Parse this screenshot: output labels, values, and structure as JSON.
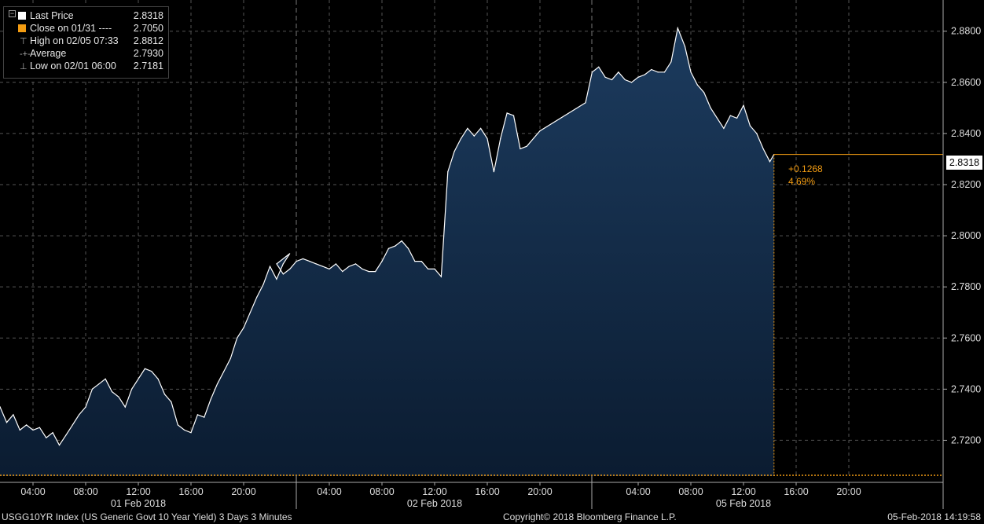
{
  "legend": {
    "rows": [
      {
        "label": "Last Price",
        "value": "2.8318",
        "icon": "square-white"
      },
      {
        "label": "Close on 01/31 ----",
        "value": "2.7050",
        "icon": "square-orange"
      },
      {
        "label": "High on 02/05 07:33",
        "value": "2.8812",
        "icon": "high-marker"
      },
      {
        "label": "Average",
        "value": "2.7930",
        "icon": "average-marker"
      },
      {
        "label": "Low on 02/01 06:00",
        "value": "2.7181",
        "icon": "low-marker"
      }
    ]
  },
  "last_price_tag": "2.8318",
  "change": {
    "abs": "+0.1268",
    "pct": "4.69%"
  },
  "footer": {
    "left": "USGG10YR Index (US Generic Govt 10 Year Yield) 3 Days 3 Minutes",
    "center": "Copyright© 2018 Bloomberg Finance L.P.",
    "right": "05-Feb-2018 14:19:58"
  },
  "colors": {
    "fill_top": "#1c3b5e",
    "fill_bottom": "#0b1c31",
    "line": "#ffffff",
    "close_line": "#f39c12",
    "grid": "#555555"
  },
  "chart_data": {
    "type": "area",
    "title": "",
    "ylim": [
      2.706,
      2.8922
    ],
    "y_ticks": [
      "2.7200",
      "2.7400",
      "2.7600",
      "2.7800",
      "2.8000",
      "2.8200",
      "2.8400",
      "2.8600",
      "2.8800"
    ],
    "close_value": 2.705,
    "days": [
      {
        "label": "01 Feb 2018",
        "ticks": [
          "04:00",
          "08:00",
          "12:00",
          "16:00",
          "20:00"
        ]
      },
      {
        "label": "02 Feb 2018",
        "ticks": [
          "04:00",
          "08:00",
          "12:00",
          "16:00",
          "20:00"
        ]
      },
      {
        "label": "05 Feb 2018",
        "ticks": [
          "04:00",
          "08:00",
          "12:00",
          "16:00",
          "20:00"
        ]
      }
    ],
    "series": [
      {
        "name": "Last Price",
        "x": [
          "02-01 00:00",
          "02-01 00:30",
          "02-01 01:00",
          "02-01 01:30",
          "02-01 02:00",
          "02-01 02:30",
          "02-01 03:00",
          "02-01 03:30",
          "02-01 04:00",
          "02-01 04:30",
          "02-01 05:00",
          "02-01 05:30",
          "02-01 06:00",
          "02-01 06:30",
          "02-01 07:00",
          "02-01 07:30",
          "02-01 08:00",
          "02-01 08:30",
          "02-01 09:00",
          "02-01 09:30",
          "02-01 10:00",
          "02-01 10:30",
          "02-01 11:00",
          "02-01 11:30",
          "02-01 12:00",
          "02-01 12:30",
          "02-01 13:00",
          "02-01 13:30",
          "02-01 14:00",
          "02-01 14:30",
          "02-01 15:00",
          "02-01 15:30",
          "02-01 16:00",
          "02-01 16:30",
          "02-01 17:00",
          "02-01 17:30",
          "02-01 18:00",
          "02-01 18:30",
          "02-01 19:00",
          "02-01 19:30",
          "02-01 20:00",
          "02-01 20:30",
          "02-01 21:00",
          "02-01 21:30",
          "02-01 22:00",
          "02-01 22:30",
          "02-01 23:00",
          "02-01 23:30",
          "02-02 00:00",
          "02-02 00:30",
          "02-02 01:00",
          "02-02 01:30",
          "02-02 02:00",
          "02-02 02:30",
          "02-02 03:00",
          "02-02 03:30",
          "02-02 04:00",
          "02-02 04:30",
          "02-02 05:00",
          "02-02 05:30",
          "02-02 06:00",
          "02-02 06:30",
          "02-02 07:00",
          "02-02 07:30",
          "02-02 08:00",
          "02-02 08:30",
          "02-02 09:00",
          "02-02 09:30",
          "02-02 10:00",
          "02-02 10:30",
          "02-02 11:00",
          "02-02 11:30",
          "02-02 12:00",
          "02-02 12:30",
          "02-02 13:00",
          "02-02 13:30",
          "02-02 14:00",
          "02-02 14:30",
          "02-02 15:00",
          "02-02 15:30",
          "02-02 16:00",
          "02-02 16:30",
          "02-02 17:00",
          "02-02 17:30",
          "02-02 18:00",
          "02-02 18:30",
          "02-02 19:00",
          "02-02 19:30",
          "02-02 20:00",
          "02-05 00:00",
          "02-05 00:30",
          "02-05 01:00",
          "02-05 01:30",
          "02-05 02:00",
          "02-05 02:30",
          "02-05 03:00",
          "02-05 03:30",
          "02-05 04:00",
          "02-05 04:30",
          "02-05 05:00",
          "02-05 05:30",
          "02-05 06:00",
          "02-05 06:30",
          "02-05 07:00",
          "02-05 07:33",
          "02-05 08:00",
          "02-05 08:30",
          "02-05 09:00",
          "02-05 09:30",
          "02-05 10:00",
          "02-05 10:30",
          "02-05 11:00",
          "02-05 11:30",
          "02-05 12:00",
          "02-05 12:30",
          "02-05 13:00",
          "02-05 13:30",
          "02-05 14:00",
          "02-05 14:19"
        ],
        "values": [
          2.726,
          2.729,
          2.73,
          2.733,
          2.727,
          2.73,
          2.724,
          2.726,
          2.724,
          2.725,
          2.721,
          2.723,
          2.7181,
          2.722,
          2.726,
          2.73,
          2.733,
          2.74,
          2.742,
          2.744,
          2.739,
          2.737,
          2.733,
          2.74,
          2.744,
          2.748,
          2.747,
          2.744,
          2.738,
          2.735,
          2.726,
          2.724,
          2.723,
          2.73,
          2.729,
          2.736,
          2.742,
          2.747,
          2.752,
          2.76,
          2.764,
          2.77,
          2.776,
          2.781,
          2.788,
          2.783,
          2.789,
          2.793,
          2.789,
          2.785,
          2.787,
          2.79,
          2.791,
          2.79,
          2.789,
          2.788,
          2.787,
          2.789,
          2.786,
          2.788,
          2.789,
          2.787,
          2.786,
          2.786,
          2.79,
          2.795,
          2.796,
          2.798,
          2.795,
          2.79,
          2.79,
          2.787,
          2.787,
          2.784,
          2.825,
          2.833,
          2.838,
          2.842,
          2.839,
          2.842,
          2.838,
          2.825,
          2.838,
          2.848,
          2.847,
          2.834,
          2.835,
          2.838,
          2.841,
          2.852,
          2.864,
          2.866,
          2.862,
          2.861,
          2.864,
          2.861,
          2.86,
          2.862,
          2.863,
          2.865,
          2.864,
          2.864,
          2.868,
          2.8812,
          2.874,
          2.864,
          2.859,
          2.856,
          2.85,
          2.846,
          2.842,
          2.847,
          2.846,
          2.851,
          2.843,
          2.84,
          2.834,
          2.829,
          2.8318
        ]
      }
    ]
  }
}
